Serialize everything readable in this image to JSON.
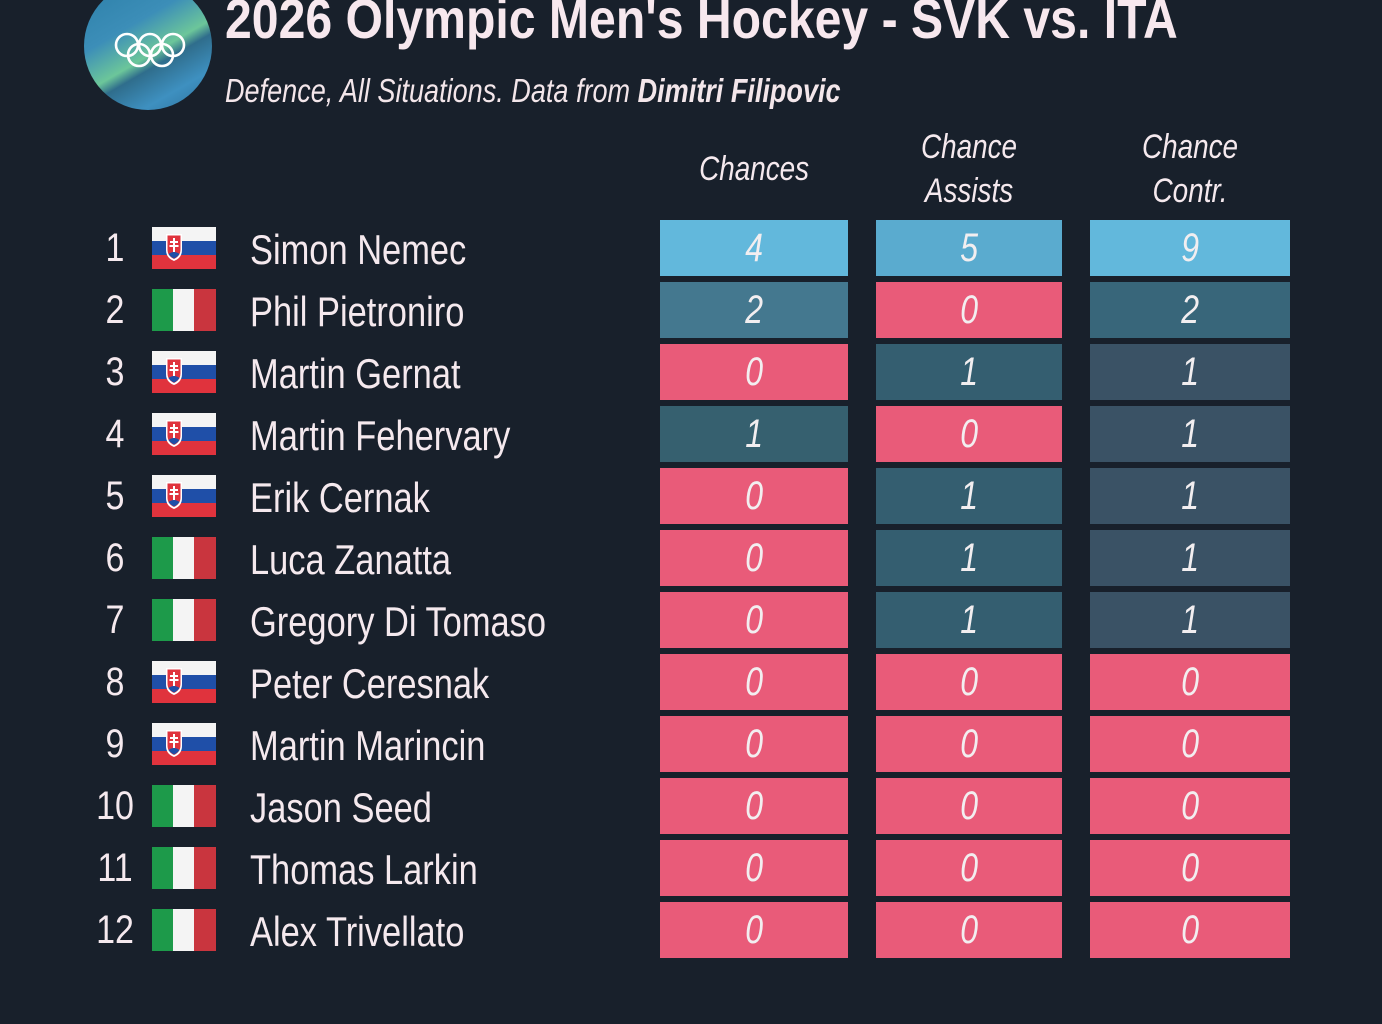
{
  "header": {
    "title": "2026 Olympic Men's Hockey - SVK vs. ITA",
    "subtitle_prefix": "Defence, All Situations. Data from ",
    "subtitle_author": "Dimitri Filipovic",
    "logo": "olympic-rings-logo"
  },
  "columns": [
    "Chances",
    "Chance Assists",
    "Chance Contr."
  ],
  "colors": {
    "background": "#18202b",
    "zero": "#e95b79",
    "high": "#62b8dc",
    "mid": "#44788f",
    "low": "#36606f",
    "lowest": "#3a5265"
  },
  "rows": [
    {
      "rank": "1",
      "country": "SVK",
      "name": "Simon Nemec",
      "values": [
        "4",
        "5",
        "9"
      ]
    },
    {
      "rank": "2",
      "country": "ITA",
      "name": "Phil Pietroniro",
      "values": [
        "2",
        "0",
        "2"
      ]
    },
    {
      "rank": "3",
      "country": "SVK",
      "name": "Martin Gernat",
      "values": [
        "0",
        "1",
        "1"
      ]
    },
    {
      "rank": "4",
      "country": "SVK",
      "name": "Martin Fehervary",
      "values": [
        "1",
        "0",
        "1"
      ]
    },
    {
      "rank": "5",
      "country": "SVK",
      "name": "Erik Cernak",
      "values": [
        "0",
        "1",
        "1"
      ]
    },
    {
      "rank": "6",
      "country": "ITA",
      "name": "Luca Zanatta",
      "values": [
        "0",
        "1",
        "1"
      ]
    },
    {
      "rank": "7",
      "country": "ITA",
      "name": "Gregory Di Tomaso",
      "values": [
        "0",
        "1",
        "1"
      ]
    },
    {
      "rank": "8",
      "country": "SVK",
      "name": "Peter Ceresnak",
      "values": [
        "0",
        "0",
        "0"
      ]
    },
    {
      "rank": "9",
      "country": "SVK",
      "name": "Martin Marincin",
      "values": [
        "0",
        "0",
        "0"
      ]
    },
    {
      "rank": "10",
      "country": "ITA",
      "name": "Jason Seed",
      "values": [
        "0",
        "0",
        "0"
      ]
    },
    {
      "rank": "11",
      "country": "ITA",
      "name": "Thomas Larkin",
      "values": [
        "0",
        "0",
        "0"
      ]
    },
    {
      "rank": "12",
      "country": "ITA",
      "name": "Alex Trivellato",
      "values": [
        "0",
        "0",
        "0"
      ]
    }
  ]
}
